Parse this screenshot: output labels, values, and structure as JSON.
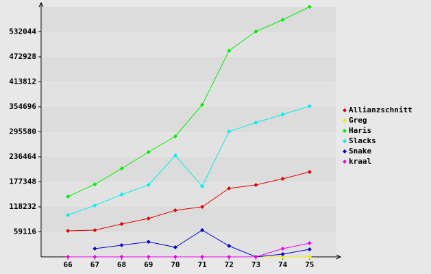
{
  "chart_data": {
    "type": "line",
    "x": [
      66,
      67,
      68,
      69,
      70,
      71,
      72,
      73,
      74,
      75
    ],
    "xlim": [
      65,
      76
    ],
    "ylim": [
      0,
      591160
    ],
    "yticks": [
      59116,
      118232,
      177348,
      236464,
      295580,
      354696,
      413812,
      472928,
      532044
    ],
    "legend": "right",
    "series": [
      {
        "name": "Allianzschnitt",
        "color": "#dd0000",
        "values": [
          61545,
          63165,
          77742,
          90698,
          110133,
          118231,
          161960,
          170058,
          184634,
          200830
        ]
      },
      {
        "name": "Greg",
        "color": "#eeee00",
        "values": [
          0,
          0,
          0,
          0,
          0,
          0,
          0,
          0,
          0,
          0
        ]
      },
      {
        "name": "Haris",
        "color": "#00ee00",
        "values": [
          142525,
          171678,
          208928,
          247799,
          285050,
          359551,
          487500,
          532848,
          560382,
          591160
        ]
      },
      {
        "name": "Slacks",
        "color": "#00eeee",
        "values": [
          98796,
          121470,
          147384,
          170058,
          239701,
          166819,
          296387,
          317442,
          336877,
          356312
        ]
      },
      {
        "name": "Snake",
        "color": "#0000cc",
        "values": [
          null,
          19435,
          27533,
          35631,
          22674,
          63164,
          25914,
          0,
          6478,
          17816
        ]
      },
      {
        "name": "kraal",
        "color": "#ee00ee",
        "values": [
          0,
          0,
          0,
          0,
          0,
          0,
          0,
          0,
          19435,
          32392
        ]
      }
    ]
  }
}
